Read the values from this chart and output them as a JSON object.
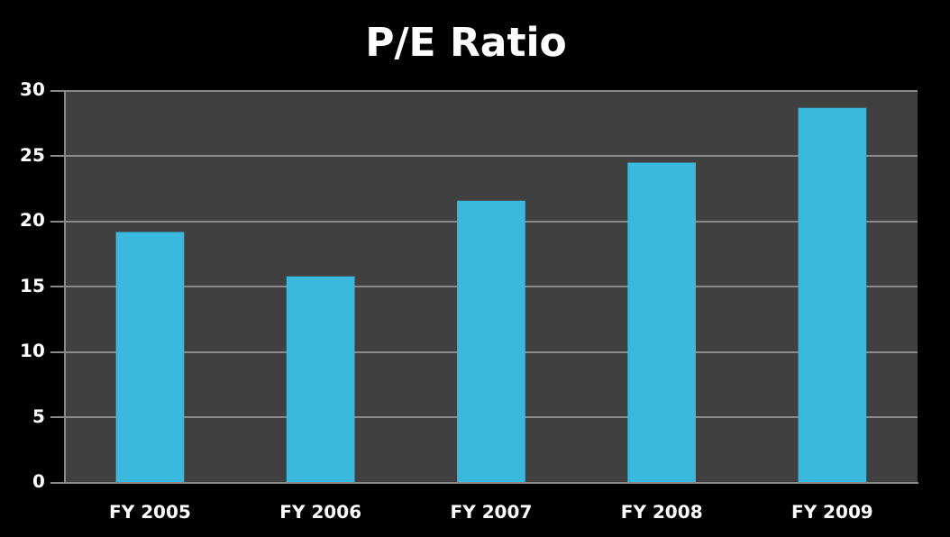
{
  "chart_data": {
    "type": "bar",
    "title": "P/E Ratio",
    "categories": [
      "FY 2005",
      "FY 2006",
      "FY 2007",
      "FY 2008",
      "FY 2009"
    ],
    "values": [
      19.2,
      15.8,
      21.6,
      24.5,
      28.7
    ],
    "color": "#3bb8dd",
    "ylim": [
      0,
      30
    ],
    "yticks": [
      0,
      5,
      10,
      15,
      20,
      25,
      30
    ],
    "grid": "y",
    "legend": false
  }
}
